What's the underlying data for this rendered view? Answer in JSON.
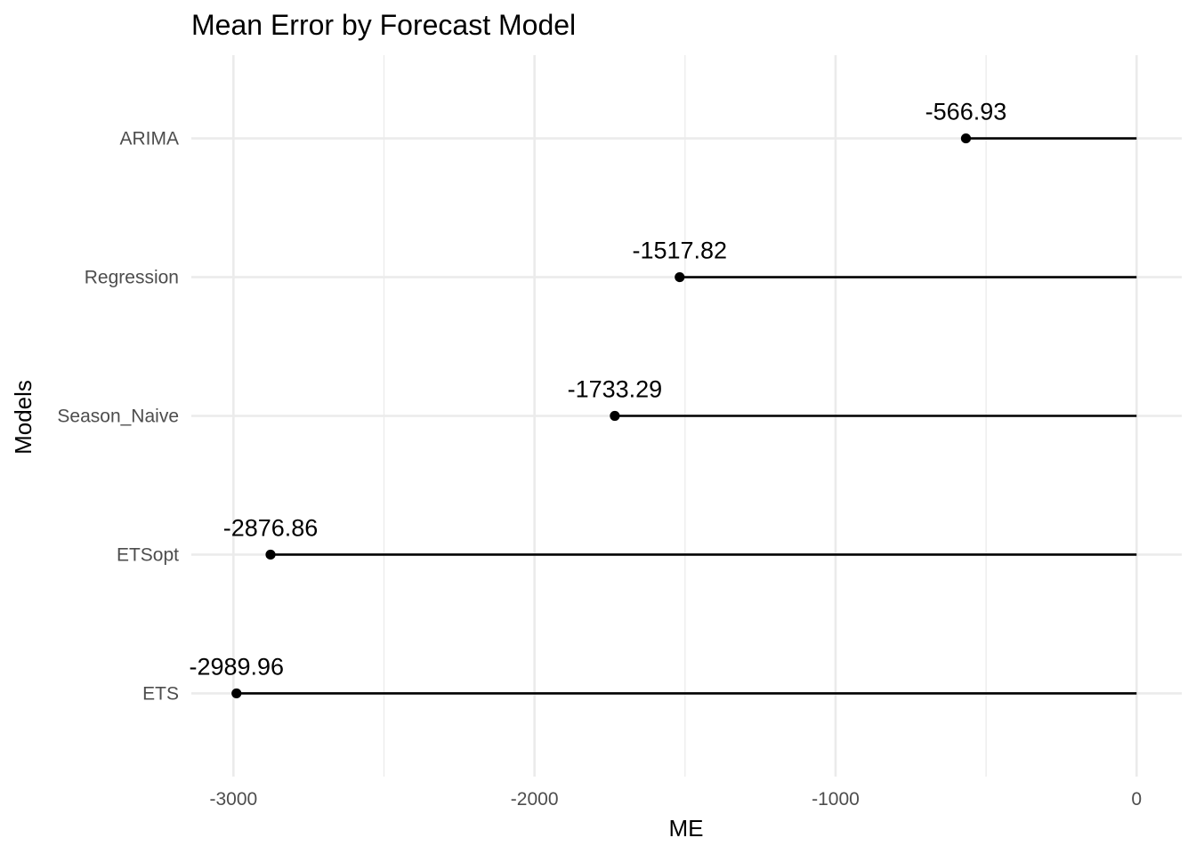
{
  "chart_data": {
    "type": "lollipop",
    "title": "Mean Error by Forecast Model",
    "xlabel": "ME",
    "ylabel": "Models",
    "xlim": [
      -3140,
      150
    ],
    "x_ticks": [
      -3000,
      -2000,
      -1000,
      0
    ],
    "x_tick_labels": [
      "-3000",
      "-2000",
      "-1000",
      "0"
    ],
    "x_minor_ticks": [
      -2500,
      -1500,
      -500
    ],
    "baseline": 0,
    "categories": [
      "ARIMA",
      "Regression",
      "Season_Naive",
      "ETSopt",
      "ETS"
    ],
    "values": [
      -566.93,
      -1517.82,
      -1733.29,
      -2876.86,
      -2989.96
    ],
    "value_labels": [
      "-566.93",
      "-1517.82",
      "-1733.29",
      "-2876.86",
      "-2989.96"
    ],
    "grid": true,
    "legend": "none",
    "colors": {
      "mark": "#000000",
      "grid": "#ebebeb",
      "tick_text": "#4d4d4d"
    }
  }
}
